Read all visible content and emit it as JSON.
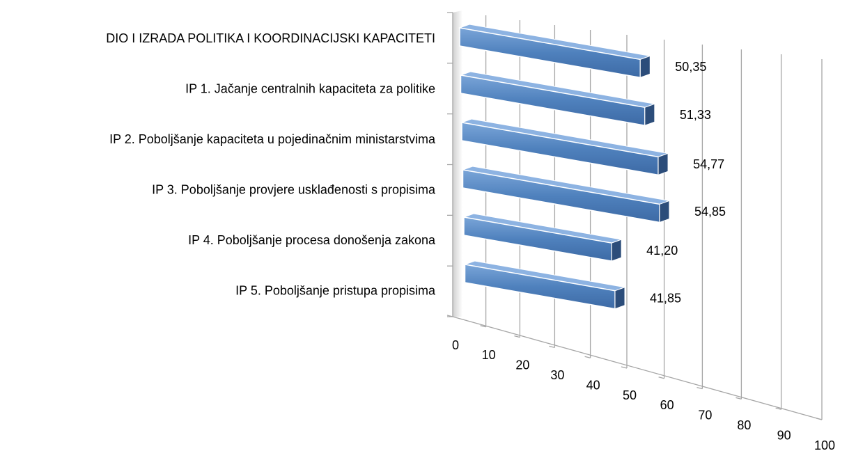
{
  "chart_data": {
    "type": "bar3d",
    "categories": [
      "DIO I IZRADA POLITIKA I KOORDINACIJSKI KAPACITETI",
      "IP 1. Jačanje centralnih kapaciteta za politike",
      "IP 2. Poboljšanje kapaciteta u pojedinačnim ministarstvima",
      "IP 3. Poboljšanje provjere usklađenosti s propisima",
      "IP 4. Poboljšanje procesa donošenja zakona",
      "IP 5. Poboljšanje pristupa propisima"
    ],
    "values": [
      50.35,
      51.33,
      54.77,
      54.85,
      41.2,
      41.85
    ],
    "value_labels": [
      "50,35",
      "51,33",
      "54,77",
      "54,85",
      "41,20",
      "41,85"
    ],
    "color": "#4f81bd",
    "xlim": [
      0,
      100
    ],
    "xticks": [
      0,
      10,
      20,
      30,
      40,
      50,
      60,
      70,
      80,
      90,
      100
    ],
    "grid": true
  }
}
